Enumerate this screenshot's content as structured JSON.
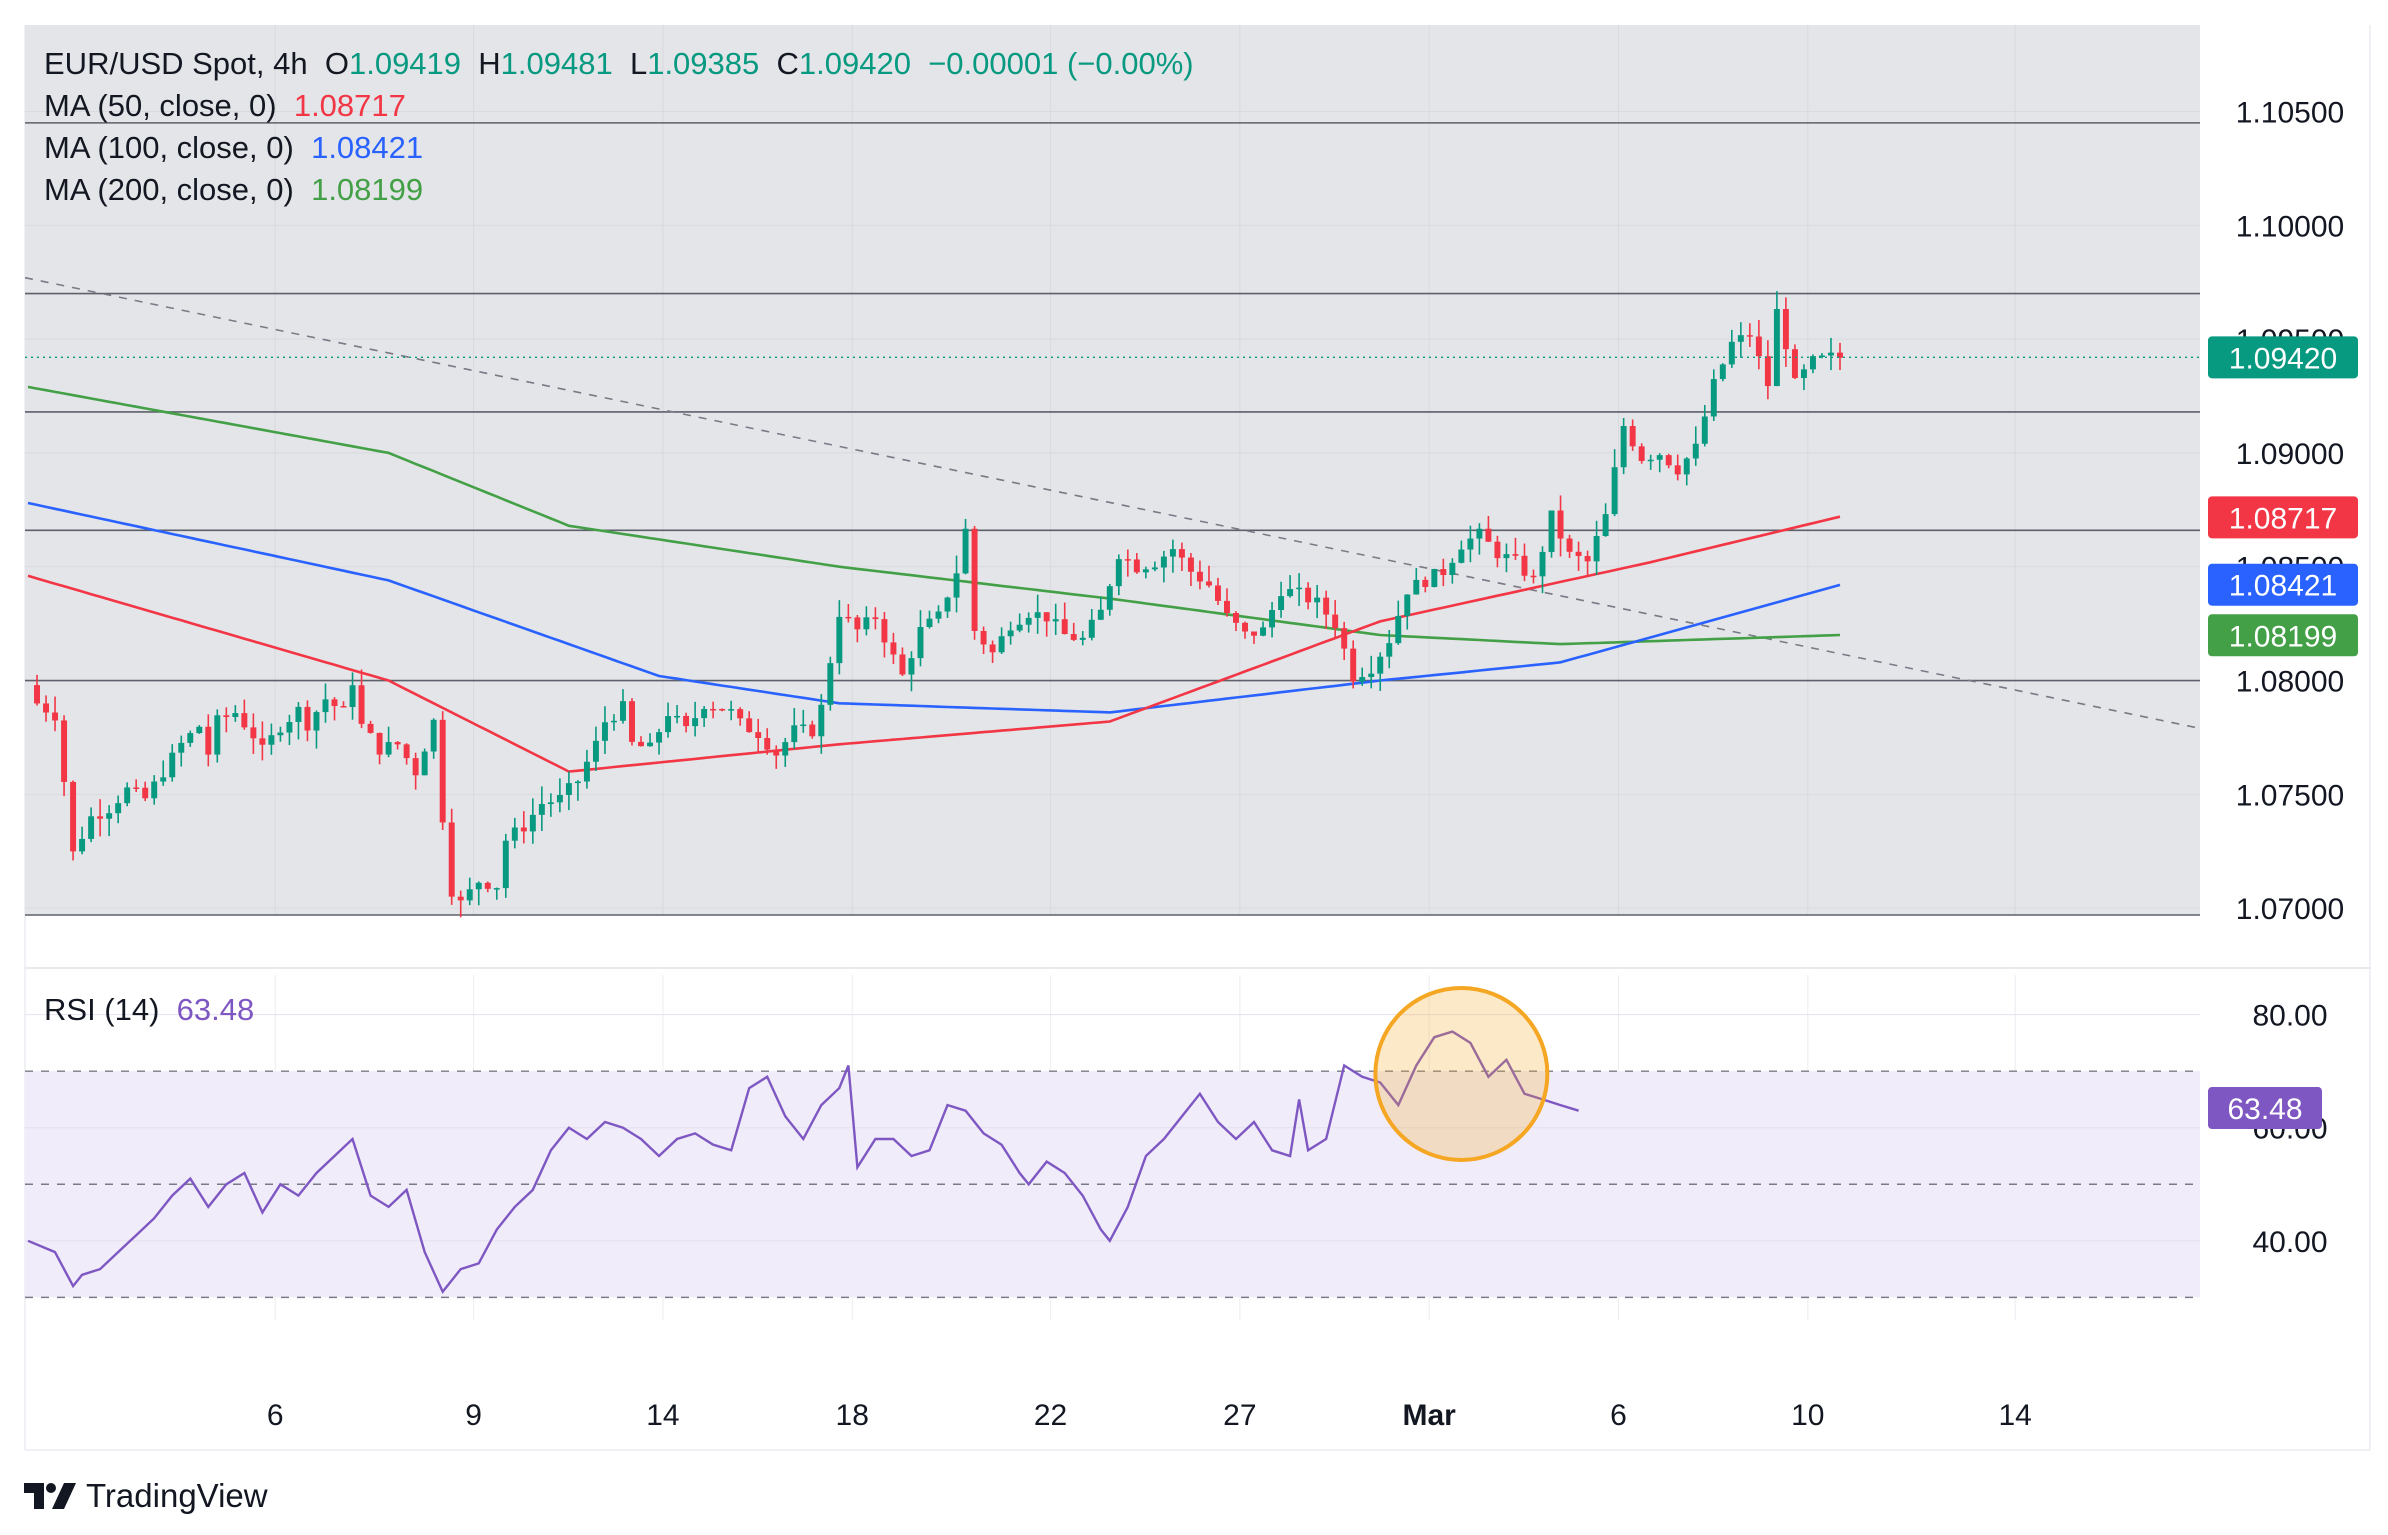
{
  "header": {
    "symbol": "EUR/USD Spot, 4h",
    "open_label": "O",
    "open": "1.09419",
    "high_label": "H",
    "high": "1.09481",
    "low_label": "L",
    "low": "1.09385",
    "close_label": "C",
    "close": "1.09420",
    "change": "−0.00001 (−0.00%)"
  },
  "ma": [
    {
      "label": "MA (50, close, 0)",
      "value": "1.08717",
      "color": "#f23645"
    },
    {
      "label": "MA (100, close, 0)",
      "value": "1.08421",
      "color": "#2962ff"
    },
    {
      "label": "MA (200, close, 0)",
      "value": "1.08199",
      "color": "#43a047"
    }
  ],
  "rsi": {
    "label": "RSI (14)",
    "value": "63.48",
    "color": "#7e57c2"
  },
  "price_badge": {
    "value": "1.09420",
    "color": "#089981"
  },
  "brand": {
    "name": "TradingView"
  },
  "colors": {
    "up": "#089981",
    "down": "#f23645",
    "pane_bg": "#e4e5e8",
    "rsi_band": "#f0ecf9",
    "highlight": "#f5a623"
  },
  "chart_data": {
    "type": "candlestick",
    "title": "EUR/USD Spot, 4h",
    "x_tick_labels": [
      "6",
      "9",
      "14",
      "18",
      "22",
      "27",
      "Mar",
      "6",
      "10",
      "14"
    ],
    "y_tick_labels": [
      "1.10500",
      "1.10000",
      "1.09500",
      "1.09000",
      "1.08500",
      "1.08000",
      "1.07500",
      "1.07000"
    ],
    "ylim": [
      1.0697,
      1.1088
    ],
    "horizontal_levels": [
      1.1045,
      1.097,
      1.0918,
      1.0866,
      1.08,
      1.0697
    ],
    "trendline": {
      "start": 1.0977,
      "end": 1.0779,
      "style": "dashed"
    },
    "close_path": [
      [
        0,
        1.0798
      ],
      [
        1,
        1.079
      ],
      [
        3,
        1.0785
      ],
      [
        4,
        1.0756
      ],
      [
        5,
        1.0724
      ],
      [
        7,
        1.074
      ],
      [
        9,
        1.0744
      ],
      [
        11,
        1.0752
      ],
      [
        13,
        1.0748
      ],
      [
        15,
        1.076
      ],
      [
        17,
        1.0772
      ],
      [
        19,
        1.078
      ],
      [
        20,
        1.0768
      ],
      [
        21,
        1.0782
      ],
      [
        23,
        1.0786
      ],
      [
        25,
        1.0776
      ],
      [
        26,
        1.0769
      ],
      [
        28,
        1.078
      ],
      [
        30,
        1.0787
      ],
      [
        31,
        1.0781
      ],
      [
        33,
        1.0792
      ],
      [
        35,
        1.0786
      ],
      [
        36,
        1.08
      ],
      [
        37,
        1.078
      ],
      [
        39,
        1.077
      ],
      [
        41,
        1.0772
      ],
      [
        43,
        1.076
      ],
      [
        45,
        1.0782
      ],
      [
        46,
        1.074
      ],
      [
        47,
        1.0708
      ],
      [
        48,
        1.0702
      ],
      [
        50,
        1.0712
      ],
      [
        52,
        1.071
      ],
      [
        53,
        1.073
      ],
      [
        55,
        1.0736
      ],
      [
        57,
        1.0746
      ],
      [
        59,
        1.0748
      ],
      [
        61,
        1.0756
      ],
      [
        63,
        1.0772
      ],
      [
        64,
        1.0782
      ],
      [
        66,
        1.0788
      ],
      [
        67,
        1.0772
      ],
      [
        69,
        1.077
      ],
      [
        71,
        1.0786
      ],
      [
        73,
        1.0778
      ],
      [
        75,
        1.079
      ],
      [
        77,
        1.0788
      ],
      [
        78,
        1.0786
      ],
      [
        79,
        1.0781
      ],
      [
        81,
        1.0777
      ],
      [
        83,
        1.0768
      ],
      [
        85,
        1.0778
      ],
      [
        87,
        1.0778
      ],
      [
        88,
        1.0788
      ],
      [
        90,
        1.083
      ],
      [
        92,
        1.0822
      ],
      [
        94,
        1.0828
      ],
      [
        96,
        1.081
      ],
      [
        97,
        1.0802
      ],
      [
        99,
        1.0822
      ],
      [
        101,
        1.0828
      ],
      [
        103,
        1.0848
      ],
      [
        104,
        1.0866
      ],
      [
        105,
        1.0822
      ],
      [
        107,
        1.0812
      ],
      [
        109,
        1.0825
      ],
      [
        111,
        1.083
      ],
      [
        113,
        1.0828
      ],
      [
        115,
        1.082
      ],
      [
        117,
        1.0818
      ],
      [
        119,
        1.083
      ],
      [
        121,
        1.0856
      ],
      [
        123,
        1.085
      ],
      [
        125,
        1.0852
      ],
      [
        127,
        1.0858
      ],
      [
        129,
        1.0848
      ],
      [
        131,
        1.0842
      ],
      [
        133,
        1.0828
      ],
      [
        135,
        1.082
      ],
      [
        137,
        1.0822
      ],
      [
        139,
        1.084
      ],
      [
        141,
        1.0838
      ],
      [
        143,
        1.0834
      ],
      [
        145,
        1.0825
      ],
      [
        147,
        1.0802
      ],
      [
        149,
        1.0806
      ],
      [
        151,
        1.0818
      ],
      [
        153,
        1.084
      ],
      [
        155,
        1.0844
      ],
      [
        157,
        1.0848
      ],
      [
        159,
        1.086
      ],
      [
        161,
        1.0864
      ],
      [
        163,
        1.0856
      ],
      [
        165,
        1.0852
      ],
      [
        167,
        1.0844
      ],
      [
        169,
        1.0872
      ],
      [
        171,
        1.0855
      ],
      [
        173,
        1.0852
      ],
      [
        175,
        1.0872
      ],
      [
        177,
        1.0912
      ],
      [
        179,
        1.0898
      ],
      [
        181,
        1.09
      ],
      [
        183,
        1.0893
      ],
      [
        185,
        1.0902
      ],
      [
        187,
        1.093
      ],
      [
        189,
        1.0948
      ],
      [
        191,
        1.0952
      ],
      [
        193,
        1.093
      ],
      [
        194,
        1.0962
      ],
      [
        195,
        1.0948
      ],
      [
        196,
        1.093
      ],
      [
        198,
        1.094
      ],
      [
        200,
        1.0942
      ],
      [
        201,
        1.0942
      ]
    ],
    "ma50_path": [
      [
        0,
        1.0846
      ],
      [
        40,
        1.08
      ],
      [
        60,
        1.076
      ],
      [
        90,
        1.0772
      ],
      [
        120,
        1.0782
      ],
      [
        150,
        1.0826
      ],
      [
        180,
        1.0852
      ],
      [
        201,
        1.0872
      ]
    ],
    "ma100_path": [
      [
        0,
        1.0878
      ],
      [
        40,
        1.0844
      ],
      [
        70,
        1.0802
      ],
      [
        90,
        1.079
      ],
      [
        120,
        1.0786
      ],
      [
        150,
        1.08
      ],
      [
        170,
        1.0808
      ],
      [
        201,
        1.0842
      ]
    ],
    "ma200_path": [
      [
        0,
        1.0929
      ],
      [
        40,
        1.09
      ],
      [
        60,
        1.0868
      ],
      [
        90,
        1.085
      ],
      [
        120,
        1.0836
      ],
      [
        150,
        1.082
      ],
      [
        170,
        1.0816
      ],
      [
        201,
        1.082
      ]
    ],
    "rsi_series": {
      "name": "RSI (14)",
      "ylim": [
        26,
        87
      ],
      "y_tick_labels": [
        "80.00",
        "60.00",
        "40.00"
      ],
      "levels": [
        70,
        50,
        30
      ],
      "points": [
        [
          0,
          40
        ],
        [
          3,
          38
        ],
        [
          5,
          32
        ],
        [
          6,
          34
        ],
        [
          8,
          35
        ],
        [
          10,
          38
        ],
        [
          12,
          41
        ],
        [
          14,
          44
        ],
        [
          16,
          48
        ],
        [
          18,
          51
        ],
        [
          20,
          46
        ],
        [
          22,
          50
        ],
        [
          24,
          52
        ],
        [
          26,
          45
        ],
        [
          28,
          50
        ],
        [
          30,
          48
        ],
        [
          32,
          52
        ],
        [
          34,
          55
        ],
        [
          36,
          58
        ],
        [
          38,
          48
        ],
        [
          40,
          46
        ],
        [
          42,
          49
        ],
        [
          44,
          38
        ],
        [
          46,
          31
        ],
        [
          48,
          35
        ],
        [
          50,
          36
        ],
        [
          52,
          42
        ],
        [
          54,
          46
        ],
        [
          56,
          49
        ],
        [
          58,
          56
        ],
        [
          60,
          60
        ],
        [
          62,
          58
        ],
        [
          64,
          61
        ],
        [
          66,
          60
        ],
        [
          68,
          58
        ],
        [
          70,
          55
        ],
        [
          72,
          58
        ],
        [
          74,
          59
        ],
        [
          76,
          57
        ],
        [
          78,
          56
        ],
        [
          80,
          67
        ],
        [
          82,
          69
        ],
        [
          84,
          62
        ],
        [
          86,
          58
        ],
        [
          88,
          64
        ],
        [
          90,
          67
        ],
        [
          91,
          71
        ],
        [
          92,
          53
        ],
        [
          94,
          58
        ],
        [
          96,
          58
        ],
        [
          98,
          55
        ],
        [
          100,
          56
        ],
        [
          102,
          64
        ],
        [
          104,
          63
        ],
        [
          106,
          59
        ],
        [
          108,
          57
        ],
        [
          110,
          52
        ],
        [
          111,
          50
        ],
        [
          113,
          54
        ],
        [
          115,
          52
        ],
        [
          117,
          48
        ],
        [
          119,
          42
        ],
        [
          120,
          40
        ],
        [
          122,
          46
        ],
        [
          124,
          55
        ],
        [
          126,
          58
        ],
        [
          128,
          62
        ],
        [
          130,
          66
        ],
        [
          132,
          61
        ],
        [
          134,
          58
        ],
        [
          136,
          61
        ],
        [
          138,
          56
        ],
        [
          140,
          55
        ],
        [
          141,
          65
        ],
        [
          142,
          56
        ],
        [
          144,
          58
        ],
        [
          146,
          71
        ],
        [
          148,
          69
        ],
        [
          150,
          68
        ],
        [
          152,
          64
        ],
        [
          154,
          71
        ],
        [
          156,
          76
        ],
        [
          158,
          77
        ],
        [
          160,
          75
        ],
        [
          162,
          69
        ],
        [
          164,
          72
        ],
        [
          166,
          66
        ],
        [
          168,
          65
        ],
        [
          170,
          64
        ],
        [
          172,
          63
        ]
      ]
    }
  }
}
